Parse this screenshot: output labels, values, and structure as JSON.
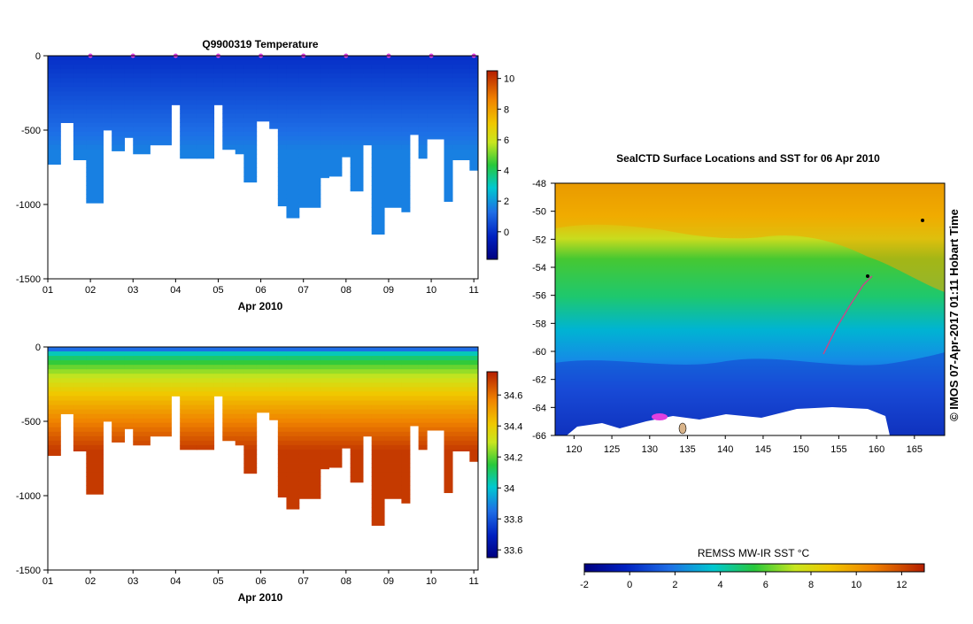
{
  "chart_data": [
    {
      "type": "heatmap",
      "title": "Q9900319  Temperature",
      "xlabel": "Apr 2010",
      "ylabel": "",
      "x_ticks": [
        "01",
        "02",
        "03",
        "04",
        "05",
        "06",
        "07",
        "08",
        "09",
        "10",
        "11"
      ],
      "xlim": [
        1,
        11.1
      ],
      "ylim": [
        -1500,
        0
      ],
      "y_ticks": [
        0,
        -500,
        -1000,
        -1500
      ],
      "colorbar": {
        "ticks": [
          0,
          2,
          4,
          6,
          8,
          10
        ],
        "range": [
          -1.8,
          10.5
        ]
      },
      "profile_days": [
        1.0,
        1.3,
        1.6,
        1.9,
        2.3,
        2.5,
        2.8,
        3.0,
        3.4,
        3.9,
        4.1,
        4.5,
        4.9,
        5.1,
        5.4,
        5.6,
        5.9,
        6.2,
        6.4,
        6.6,
        6.9,
        7.4,
        7.6,
        7.9,
        8.1,
        8.4,
        8.6,
        8.9,
        9.3,
        9.5,
        9.7,
        9.9,
        10.3,
        10.5,
        10.9,
        11.1
      ],
      "profile_max_depth": [
        730,
        450,
        700,
        990,
        500,
        640,
        550,
        660,
        600,
        330,
        690,
        690,
        330,
        630,
        660,
        850,
        440,
        490,
        1010,
        1090,
        1020,
        820,
        810,
        680,
        910,
        600,
        1200,
        1020,
        1050,
        530,
        690,
        560,
        980,
        700,
        770,
        1040
      ],
      "surface_temp": 0.0,
      "deep_temp": 1.6,
      "surface_markers_days": [
        2,
        3,
        4,
        5,
        6,
        7,
        8,
        9,
        10,
        11
      ]
    },
    {
      "type": "heatmap",
      "title": "",
      "xlabel": "Apr 2010",
      "ylabel": "",
      "x_ticks": [
        "01",
        "02",
        "03",
        "04",
        "05",
        "06",
        "07",
        "08",
        "09",
        "10",
        "11"
      ],
      "xlim": [
        1,
        11.1
      ],
      "ylim": [
        -1500,
        0
      ],
      "y_ticks": [
        0,
        -500,
        -1000,
        -1500
      ],
      "colorbar": {
        "ticks": [
          33.6,
          33.8,
          34,
          34.2,
          34.4,
          34.6
        ],
        "range": [
          33.55,
          34.75
        ]
      },
      "surface_salinity": 33.85,
      "deep_salinity": 34.7
    },
    {
      "type": "heatmap",
      "title": "SealCTD Surface Locations and SST for 06 Apr 2010",
      "x_ticks": [
        120,
        125,
        130,
        135,
        140,
        145,
        150,
        155,
        160,
        165
      ],
      "y_ticks": [
        -48,
        -50,
        -52,
        -54,
        -56,
        -58,
        -60,
        -62,
        -64,
        -66
      ],
      "xlim": [
        117.5,
        169
      ],
      "ylim": [
        -66,
        -48
      ],
      "colorbar": {
        "label": "REMSS MW-IR SST °C",
        "ticks": [
          -2,
          0,
          2,
          4,
          6,
          8,
          10,
          12
        ],
        "range": [
          -2,
          13
        ]
      },
      "credit": "© IMOS 07-Apr-2017 01:11 Hobart Time"
    }
  ]
}
